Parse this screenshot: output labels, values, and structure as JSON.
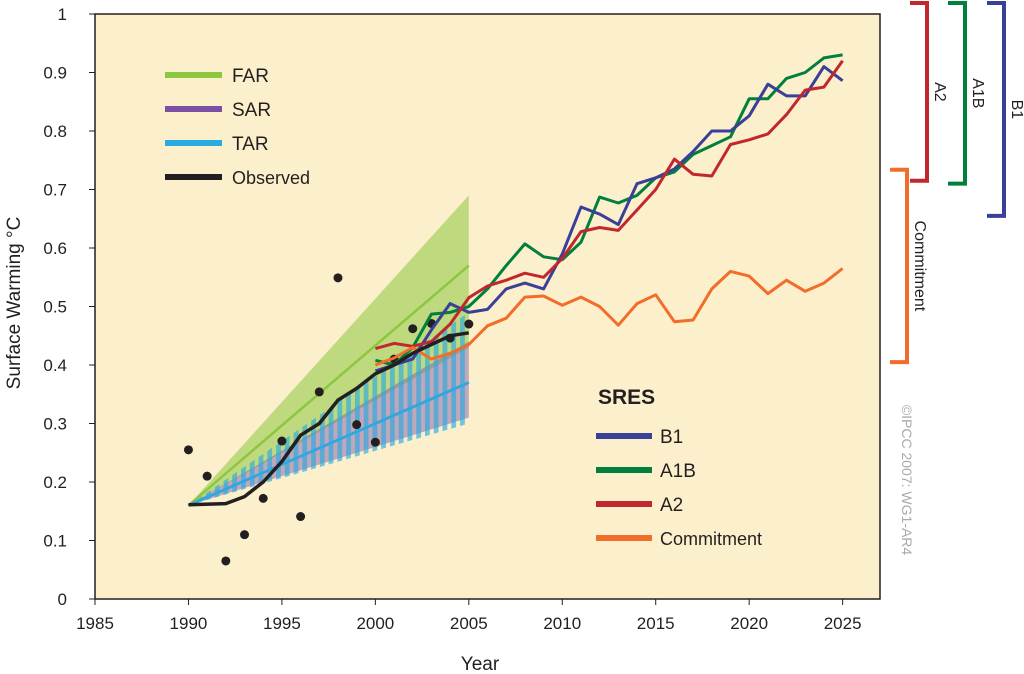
{
  "chart_data": {
    "type": "line",
    "xlabel": "Year",
    "ylabel": "Surface Warming °C",
    "xlim": [
      1985,
      2027
    ],
    "ylim": [
      0,
      1
    ],
    "x_ticks": [
      1985,
      1990,
      1995,
      2000,
      2005,
      2010,
      2015,
      2020,
      2025
    ],
    "y_ticks": [
      0,
      0.1,
      0.2,
      0.3,
      0.4,
      0.5,
      0.6,
      0.7,
      0.8,
      0.9,
      1
    ],
    "background_color": "#fcefcc",
    "colors": {
      "FAR": "#8dc63f",
      "SAR": "#7b4fa3",
      "TAR": "#29abe2",
      "Observed": "#231f20",
      "B1": "#3a3f98",
      "A1B": "#00803c",
      "A2": "#c1272d",
      "Commitment": "#f26c2a"
    },
    "assessment_legend": [
      {
        "key": "FAR",
        "label": "FAR"
      },
      {
        "key": "SAR",
        "label": "SAR"
      },
      {
        "key": "TAR",
        "label": "TAR"
      },
      {
        "key": "Observed",
        "label": "Observed"
      }
    ],
    "sres_legend_title": "SRES",
    "sres_legend": [
      {
        "key": "B1",
        "label": "B1"
      },
      {
        "key": "A1B",
        "label": "A1B"
      },
      {
        "key": "A2",
        "label": "A2"
      },
      {
        "key": "Commitment",
        "label": "Commitment"
      }
    ],
    "projection_ranges": [
      {
        "key": "FAR",
        "x": [
          1990,
          2005
        ],
        "start": 0.16,
        "central_end": 0.57,
        "upper_end": 0.69,
        "lower_end": 0.43
      },
      {
        "key": "SAR",
        "x": [
          1990,
          2005
        ],
        "start": 0.16,
        "central_end": 0.37,
        "upper_end": 0.44,
        "lower_end": 0.31
      },
      {
        "key": "TAR",
        "x": [
          1990,
          2005
        ],
        "start": 0.16,
        "central_end": 0.37,
        "upper_end": 0.49,
        "lower_end": 0.3
      }
    ],
    "observed_points": {
      "x": [
        1990,
        1991,
        1992,
        1993,
        1994,
        1995,
        1996,
        1997,
        1998,
        1999,
        2000,
        2001,
        2002,
        2003,
        2004,
        2005
      ],
      "y": [
        0.255,
        0.21,
        0.065,
        0.11,
        0.172,
        0.27,
        0.141,
        0.354,
        0.549,
        0.298,
        0.268,
        0.41,
        0.462,
        0.471,
        0.446,
        0.47
      ]
    },
    "observed_smoothed": {
      "x": [
        1990,
        1992,
        1993,
        1994,
        1995,
        1996,
        1997,
        1998,
        1999,
        2000,
        2001,
        2002,
        2003,
        2004,
        2005
      ],
      "y": [
        0.161,
        0.163,
        0.175,
        0.2,
        0.235,
        0.28,
        0.3,
        0.34,
        0.36,
        0.385,
        0.4,
        0.42,
        0.435,
        0.45,
        0.455
      ]
    },
    "series": [
      {
        "key": "A1B",
        "x": [
          2000,
          2001,
          2002,
          2003,
          2004,
          2005,
          2006,
          2007,
          2008,
          2009,
          2010,
          2011,
          2012,
          2013,
          2014,
          2015,
          2016,
          2017,
          2018,
          2019,
          2020,
          2021,
          2022,
          2023,
          2024,
          2025
        ],
        "values": [
          0.408,
          0.4,
          0.43,
          0.487,
          0.49,
          0.5,
          0.53,
          0.57,
          0.607,
          0.585,
          0.58,
          0.61,
          0.687,
          0.677,
          0.69,
          0.72,
          0.73,
          0.76,
          0.775,
          0.79,
          0.855,
          0.855,
          0.89,
          0.9,
          0.925,
          0.93
        ]
      },
      {
        "key": "B1",
        "x": [
          2000,
          2001,
          2002,
          2003,
          2004,
          2005,
          2006,
          2007,
          2008,
          2009,
          2010,
          2011,
          2012,
          2013,
          2014,
          2015,
          2016,
          2017,
          2018,
          2019,
          2020,
          2021,
          2022,
          2023,
          2024,
          2025
        ],
        "values": [
          0.39,
          0.4,
          0.41,
          0.46,
          0.505,
          0.49,
          0.495,
          0.53,
          0.54,
          0.53,
          0.59,
          0.67,
          0.658,
          0.64,
          0.71,
          0.72,
          0.735,
          0.765,
          0.8,
          0.8,
          0.826,
          0.88,
          0.86,
          0.86,
          0.91,
          0.886
        ]
      },
      {
        "key": "A2",
        "x": [
          2000,
          2001,
          2002,
          2003,
          2004,
          2005,
          2006,
          2007,
          2008,
          2009,
          2010,
          2011,
          2012,
          2013,
          2014,
          2015,
          2016,
          2017,
          2018,
          2019,
          2020,
          2021,
          2022,
          2023,
          2024,
          2025
        ],
        "values": [
          0.428,
          0.437,
          0.432,
          0.44,
          0.47,
          0.515,
          0.535,
          0.545,
          0.557,
          0.55,
          0.582,
          0.628,
          0.635,
          0.63,
          0.665,
          0.7,
          0.752,
          0.726,
          0.723,
          0.777,
          0.785,
          0.795,
          0.828,
          0.87,
          0.875,
          0.92
        ]
      },
      {
        "key": "Commitment",
        "x": [
          2000,
          2001,
          2002,
          2003,
          2004,
          2005,
          2006,
          2007,
          2008,
          2009,
          2010,
          2011,
          2012,
          2013,
          2014,
          2015,
          2016,
          2017,
          2018,
          2019,
          2020,
          2021,
          2022,
          2023,
          2024,
          2025
        ],
        "values": [
          0.4,
          0.412,
          0.43,
          0.41,
          0.42,
          0.435,
          0.467,
          0.48,
          0.516,
          0.518,
          0.502,
          0.516,
          0.5,
          0.468,
          0.505,
          0.52,
          0.474,
          0.477,
          0.53,
          0.56,
          0.552,
          0.522,
          0.545,
          0.526,
          0.54,
          0.565
        ]
      }
    ],
    "brackets": [
      {
        "key": "A2",
        "label": "A2",
        "range": [
          0.715,
          1.0
        ]
      },
      {
        "key": "A1B",
        "label": "A1B",
        "range": [
          0.71,
          1.0
        ]
      },
      {
        "key": "B1",
        "label": "B1",
        "range": [
          0.655,
          1.0
        ]
      },
      {
        "key": "Commitment",
        "label": "Commitment",
        "range": [
          0.405,
          0.715
        ]
      }
    ],
    "credit": "©IPCC 2007: WG1-AR4"
  }
}
